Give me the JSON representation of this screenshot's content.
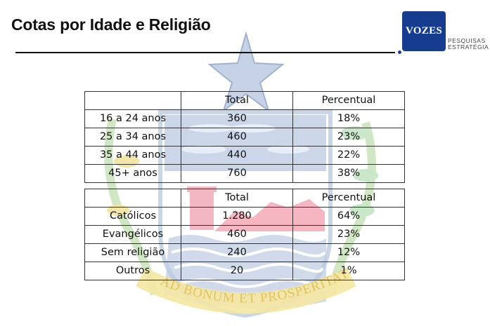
{
  "header": {
    "title": "Cotas por Idade e Religião"
  },
  "logo": {
    "name": "VOZES",
    "tagline_line1": "PESQUISAS",
    "tagline_line2": "ESTRATÉGIA",
    "color": "#163c8f"
  },
  "watermark": {
    "motto": "AD BONUM ET PROSPERITATEM"
  },
  "age_table": {
    "headers": [
      "",
      "Total",
      "Percentual"
    ],
    "rows": [
      {
        "label": "16 a 24 anos",
        "total": "360",
        "percent": "18%"
      },
      {
        "label": "25 a 34 anos",
        "total": "460",
        "percent": "23%"
      },
      {
        "label": "35 a 44 anos",
        "total": "440",
        "percent": "22%"
      },
      {
        "label": "45+ anos",
        "total": "760",
        "percent": "38%"
      }
    ]
  },
  "religion_table": {
    "headers": [
      "",
      "Total",
      "Percentual"
    ],
    "rows": [
      {
        "label": "Católicos",
        "total": "1.280",
        "percent": "64%"
      },
      {
        "label": "Evangélicos",
        "total": "460",
        "percent": "23%"
      },
      {
        "label": "Sem religião",
        "total": "240",
        "percent": "12%"
      },
      {
        "label": "Outros",
        "total": "20",
        "percent": "1%"
      }
    ]
  }
}
